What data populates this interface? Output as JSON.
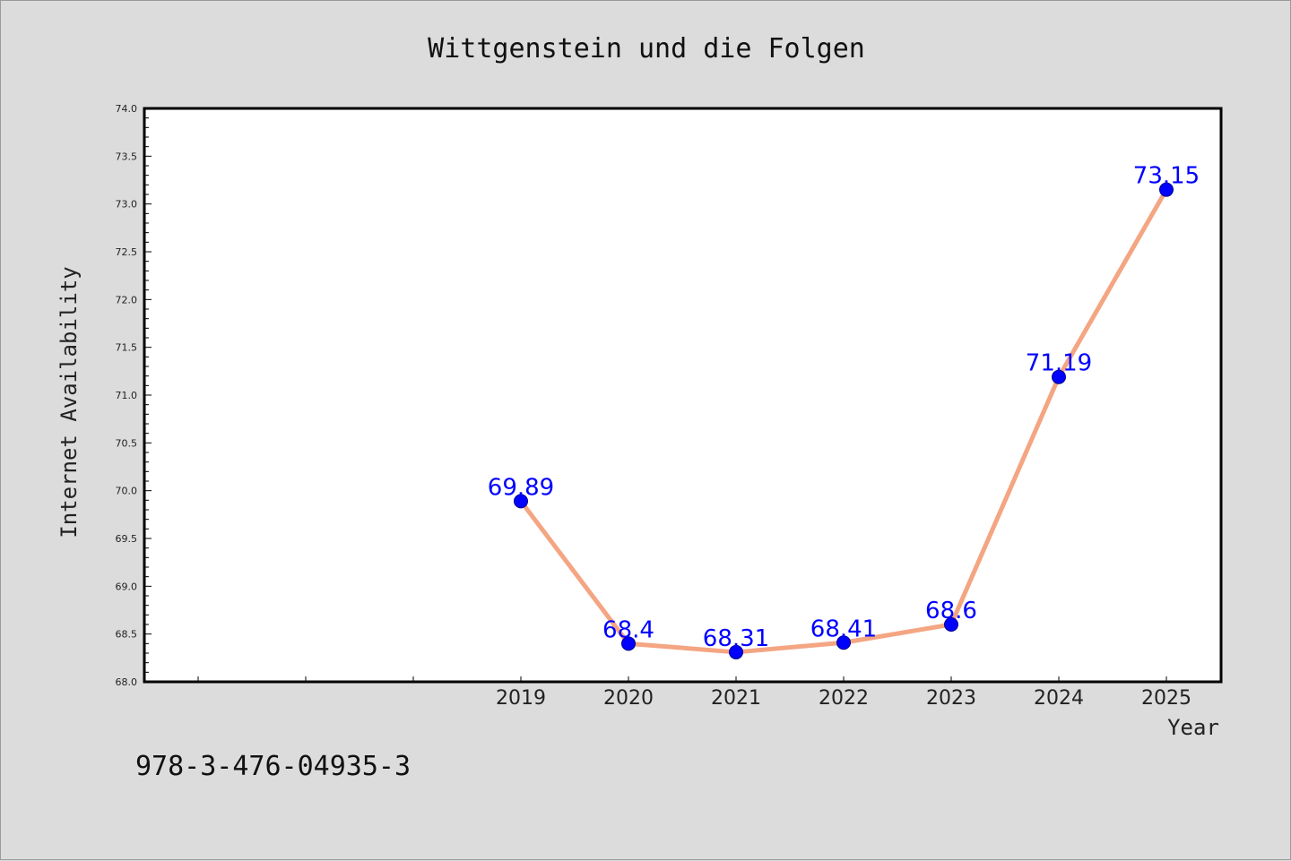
{
  "chart_data": {
    "type": "line",
    "title": "Wittgenstein und die Folgen",
    "xlabel": "Year",
    "ylabel": "Internet Availability",
    "categories": [
      "",
      "",
      "",
      "2019",
      "2020",
      "2021",
      "2022",
      "2023",
      "2024",
      "2025"
    ],
    "x": [
      "2019",
      "2020",
      "2021",
      "2022",
      "2023",
      "2024",
      "2025"
    ],
    "values": [
      69.89,
      68.4,
      68.31,
      68.41,
      68.6,
      71.19,
      73.15
    ],
    "data_labels": [
      "69.89",
      "68.4",
      "68.31",
      "68.41",
      "68.6",
      "71.19",
      "73.15"
    ],
    "ylim": [
      68.0,
      74.0
    ],
    "yticks": [
      "68.0",
      "68.5",
      "69.0",
      "69.5",
      "70.0",
      "70.5",
      "71.0",
      "71.5",
      "72.0",
      "72.5",
      "73.0",
      "73.5",
      "74.0"
    ],
    "grid": false,
    "colors": {
      "line": "#f4a582",
      "marker": "#0000ff",
      "marker_edge": "#00008b",
      "label": "#0000ff",
      "plot_bg": "#ffffff",
      "page_bg": "#dcdcdc"
    }
  },
  "footer": {
    "isbn": "978-3-476-04935-3"
  }
}
